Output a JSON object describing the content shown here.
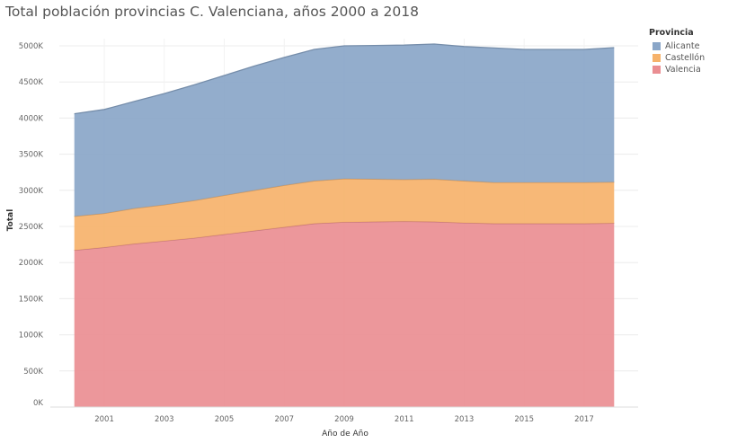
{
  "title": "Total población provincias C. Valenciana, años 2000 a 2018",
  "legend": {
    "title": "Provincia",
    "items": [
      {
        "name": "Alicante",
        "color": "#8aa6c8"
      },
      {
        "name": "Castellón",
        "color": "#f6b26b"
      },
      {
        "name": "Valencia",
        "color": "#ea8e92"
      }
    ]
  },
  "chart_data": {
    "type": "area",
    "stacked": true,
    "title": "Total población provincias C. Valenciana, años 2000 a 2018",
    "xlabel": "Año de Año",
    "ylabel": "Total",
    "x": [
      2000,
      2001,
      2002,
      2003,
      2004,
      2005,
      2006,
      2007,
      2008,
      2009,
      2010,
      2011,
      2012,
      2013,
      2014,
      2015,
      2016,
      2017,
      2018
    ],
    "xticks": [
      2001,
      2003,
      2005,
      2007,
      2009,
      2011,
      2013,
      2015,
      2017
    ],
    "xlim": [
      1999.5,
      2018.8
    ],
    "ylim": [
      0,
      5000000
    ],
    "yticks": [
      {
        "value": 0,
        "label": "0K"
      },
      {
        "value": 500000,
        "label": "500K"
      },
      {
        "value": 1000000,
        "label": "1000K"
      },
      {
        "value": 1500000,
        "label": "1500K"
      },
      {
        "value": 2000000,
        "label": "2000K"
      },
      {
        "value": 2500000,
        "label": "2500K"
      },
      {
        "value": 3000000,
        "label": "3000K"
      },
      {
        "value": 3500000,
        "label": "3500K"
      },
      {
        "value": 4000000,
        "label": "4000K"
      },
      {
        "value": 4500000,
        "label": "4500K"
      },
      {
        "value": 5000000,
        "label": "5000K"
      }
    ],
    "grid": true,
    "legend_position": "top-right",
    "series": [
      {
        "name": "Valencia",
        "color": "#ea8e92",
        "values": [
          2170000,
          2210000,
          2260000,
          2300000,
          2340000,
          2390000,
          2440000,
          2490000,
          2540000,
          2560000,
          2565000,
          2570000,
          2565000,
          2550000,
          2540000,
          2540000,
          2540000,
          2540000,
          2545000
        ]
      },
      {
        "name": "Castellón",
        "color": "#f6b26b",
        "values": [
          470000,
          470000,
          490000,
          500000,
          520000,
          540000,
          560000,
          580000,
          590000,
          600000,
          590000,
          580000,
          590000,
          580000,
          570000,
          570000,
          570000,
          570000,
          570000
        ]
      },
      {
        "name": "Alicante",
        "color": "#8aa6c8",
        "values": [
          1420000,
          1440000,
          1480000,
          1540000,
          1600000,
          1660000,
          1720000,
          1770000,
          1820000,
          1840000,
          1850000,
          1860000,
          1870000,
          1860000,
          1860000,
          1840000,
          1840000,
          1840000,
          1860000
        ]
      }
    ]
  }
}
